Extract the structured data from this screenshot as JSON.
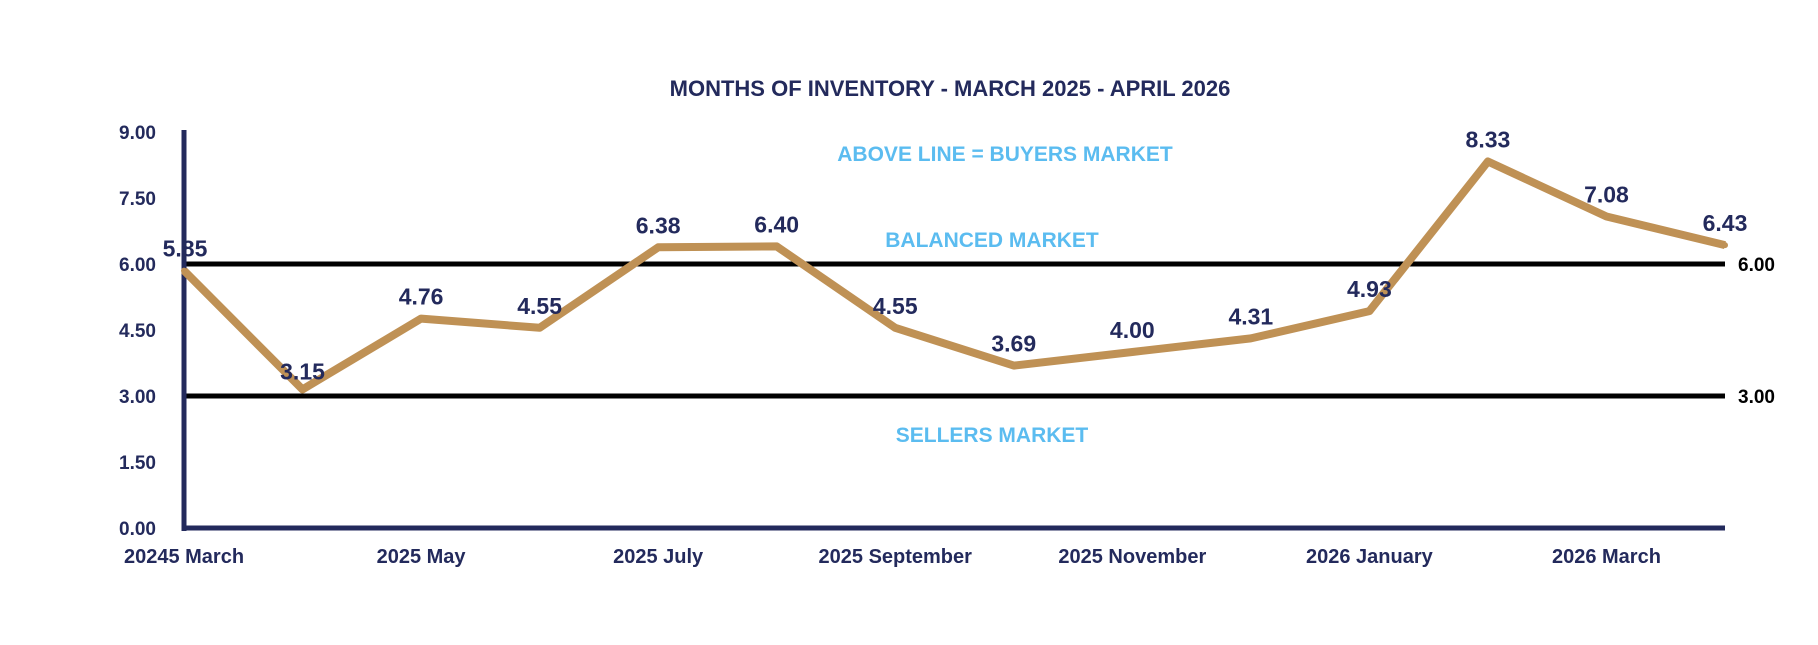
{
  "colors": {
    "navy": "#232a5c",
    "line": "#bf9155",
    "zone_text": "#5bbcf0",
    "ref_line": "#000000",
    "background": "#ffffff"
  },
  "chart_data": {
    "type": "line",
    "title": "MONTHS OF INVENTORY - MARCH 2025 - APRIL 2026",
    "xlabel": "",
    "ylabel": "",
    "ylim": [
      0,
      9
    ],
    "y_ticks": [
      "0.00",
      "1.50",
      "3.00",
      "4.50",
      "6.00",
      "7.50",
      "9.00"
    ],
    "categories": [
      "20245 March",
      "",
      "2025 May",
      "",
      "2025 July",
      "",
      "2025 September",
      "",
      "2025 November",
      "",
      "2026 January",
      "",
      "2026 March",
      ""
    ],
    "series": [
      {
        "values": [
          5.85,
          3.15,
          4.76,
          4.55,
          6.38,
          6.4,
          4.55,
          3.69,
          4.0,
          4.31,
          4.93,
          8.33,
          7.08,
          6.43
        ]
      }
    ],
    "data_labels": [
      "5.85",
      "3.15",
      "4.76",
      "4.55",
      "6.38",
      "6.40",
      "4.55",
      "3.69",
      "4.00",
      "4.31",
      "4.93",
      "8.33",
      "7.08",
      "6.43"
    ],
    "reference_lines": [
      {
        "value": 6.0,
        "label": "6.00"
      },
      {
        "value": 3.0,
        "label": "3.00"
      }
    ],
    "annotations": {
      "above": "ABOVE LINE = BUYERS MARKET",
      "balanced": "BALANCED MARKET",
      "sellers": "SELLERS MARKET"
    },
    "grid": false,
    "legend": "none"
  }
}
